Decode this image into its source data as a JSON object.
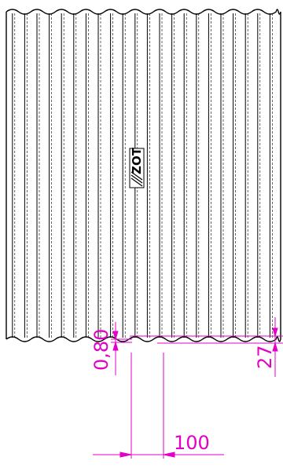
{
  "drawing": {
    "line_color": "#000000",
    "dimension_color": "#e400c8",
    "logo_text": "ZOT",
    "dimensions": {
      "thickness": "0,80",
      "wave_height": "27",
      "pitch": "100"
    }
  }
}
